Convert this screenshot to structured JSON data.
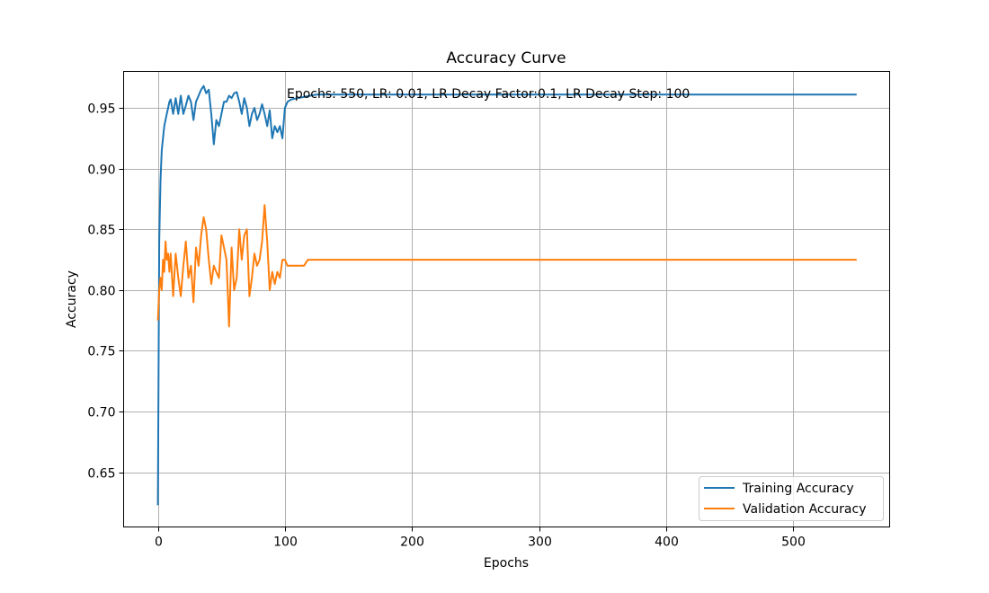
{
  "chart_data": {
    "type": "line",
    "title": "Accuracy Curve",
    "xlabel": "Epochs",
    "ylabel": "Accuracy",
    "annotation": "Epochs: 550, LR: 0.01, LR Decay Factor:0.1, LR Decay Step: 100",
    "xlim": [
      -27,
      576
    ],
    "ylim": [
      0.605,
      0.98
    ],
    "xticks": [
      0,
      100,
      200,
      300,
      400,
      500
    ],
    "xtick_labels": [
      "0",
      "100",
      "200",
      "300",
      "400",
      "500"
    ],
    "yticks": [
      0.65,
      0.7,
      0.75,
      0.8,
      0.85,
      0.9,
      0.95
    ],
    "ytick_labels": [
      "0.65",
      "0.70",
      "0.75",
      "0.80",
      "0.85",
      "0.90",
      "0.95"
    ],
    "grid": true,
    "legend_position": "lower-right",
    "series": [
      {
        "name": "Training Accuracy",
        "color": "#1f77b4",
        "x": [
          0,
          1,
          2,
          3,
          4,
          5,
          6,
          7,
          8,
          9,
          10,
          12,
          14,
          16,
          18,
          20,
          22,
          24,
          26,
          28,
          30,
          32,
          34,
          36,
          38,
          40,
          42,
          44,
          46,
          48,
          50,
          52,
          54,
          56,
          58,
          60,
          62,
          64,
          66,
          68,
          70,
          72,
          74,
          76,
          78,
          80,
          82,
          84,
          86,
          88,
          90,
          92,
          94,
          96,
          98,
          100,
          102,
          105,
          110,
          115,
          120,
          125,
          130,
          200,
          300,
          400,
          500,
          550
        ],
        "y": [
          0.623,
          0.84,
          0.89,
          0.915,
          0.925,
          0.935,
          0.94,
          0.945,
          0.95,
          0.955,
          0.957,
          0.945,
          0.958,
          0.945,
          0.96,
          0.945,
          0.952,
          0.96,
          0.955,
          0.94,
          0.955,
          0.96,
          0.965,
          0.968,
          0.962,
          0.965,
          0.945,
          0.92,
          0.94,
          0.935,
          0.945,
          0.955,
          0.955,
          0.96,
          0.958,
          0.962,
          0.963,
          0.955,
          0.945,
          0.958,
          0.95,
          0.935,
          0.945,
          0.95,
          0.94,
          0.945,
          0.953,
          0.945,
          0.935,
          0.948,
          0.925,
          0.935,
          0.93,
          0.935,
          0.925,
          0.95,
          0.955,
          0.957,
          0.958,
          0.959,
          0.96,
          0.961,
          0.961,
          0.961,
          0.961,
          0.961,
          0.961,
          0.961
        ]
      },
      {
        "name": "Validation Accuracy",
        "color": "#ff7f0e",
        "x": [
          0,
          1,
          2,
          3,
          4,
          5,
          6,
          7,
          8,
          9,
          10,
          12,
          14,
          16,
          18,
          20,
          22,
          24,
          26,
          28,
          30,
          32,
          34,
          36,
          38,
          40,
          42,
          44,
          46,
          48,
          50,
          52,
          54,
          56,
          58,
          60,
          62,
          64,
          66,
          68,
          70,
          72,
          74,
          76,
          78,
          80,
          82,
          84,
          86,
          88,
          90,
          92,
          94,
          96,
          98,
          100,
          102,
          105,
          110,
          115,
          118,
          120,
          130,
          200,
          300,
          400,
          500,
          550
        ],
        "y": [
          0.775,
          0.8,
          0.81,
          0.8,
          0.825,
          0.815,
          0.84,
          0.825,
          0.83,
          0.815,
          0.83,
          0.795,
          0.83,
          0.81,
          0.795,
          0.82,
          0.84,
          0.81,
          0.82,
          0.79,
          0.835,
          0.82,
          0.845,
          0.86,
          0.85,
          0.825,
          0.805,
          0.82,
          0.815,
          0.81,
          0.845,
          0.835,
          0.825,
          0.77,
          0.835,
          0.8,
          0.81,
          0.85,
          0.825,
          0.845,
          0.85,
          0.795,
          0.81,
          0.83,
          0.82,
          0.825,
          0.84,
          0.87,
          0.84,
          0.8,
          0.815,
          0.805,
          0.815,
          0.81,
          0.825,
          0.825,
          0.82,
          0.82,
          0.82,
          0.82,
          0.825,
          0.825,
          0.825,
          0.825,
          0.825,
          0.825,
          0.825,
          0.825
        ]
      }
    ]
  }
}
